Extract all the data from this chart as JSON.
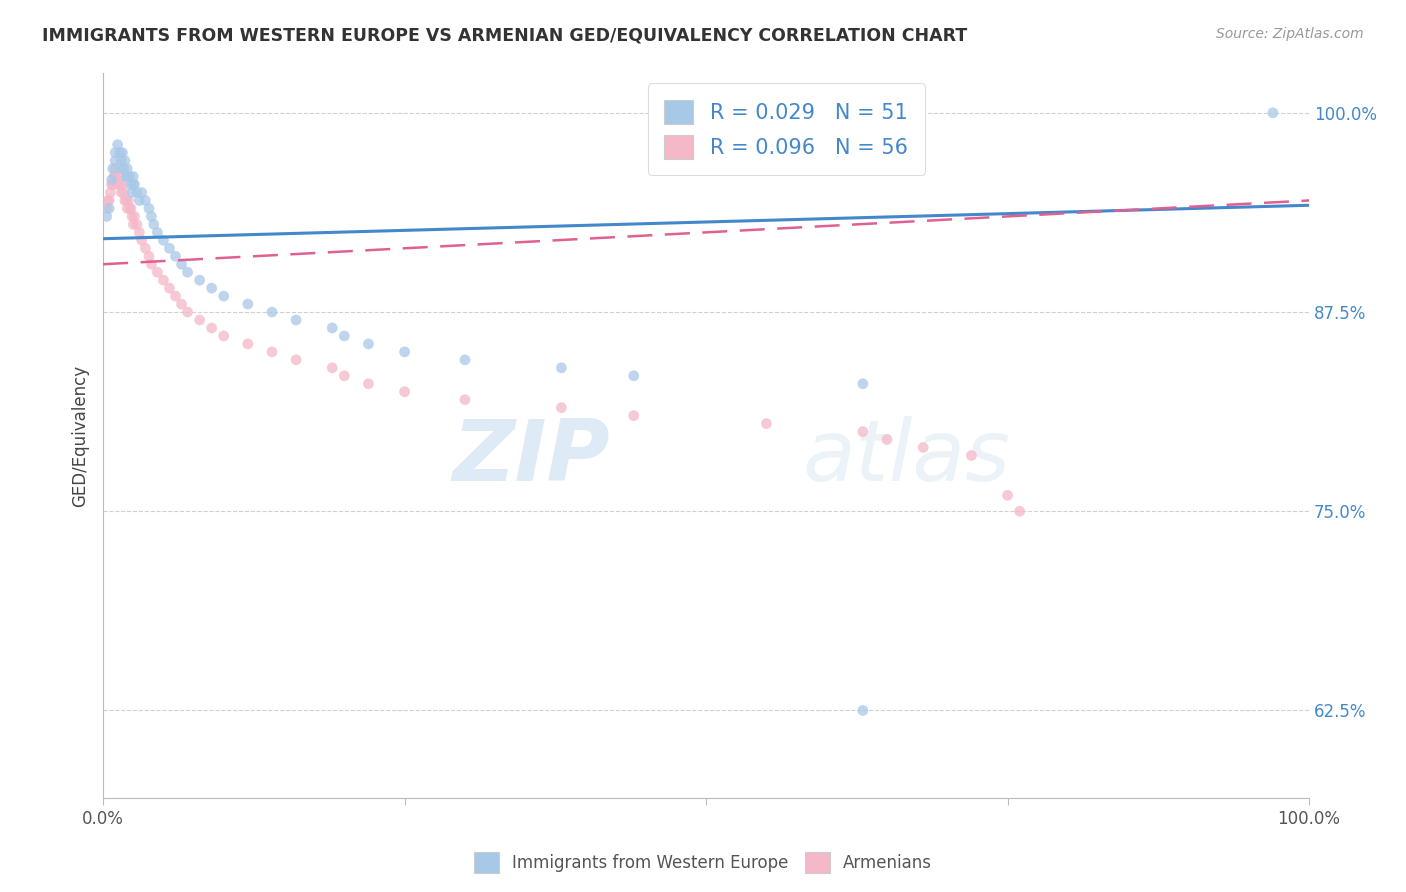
{
  "title": "IMMIGRANTS FROM WESTERN EUROPE VS ARMENIAN GED/EQUIVALENCY CORRELATION CHART",
  "source": "Source: ZipAtlas.com",
  "ylabel": "GED/Equivalency",
  "blue_color": "#a8c8e8",
  "pink_color": "#f4b8c8",
  "blue_line_color": "#4488cc",
  "pink_line_color": "#e06090",
  "background_color": "#ffffff",
  "grid_color": "#cccccc",
  "watermark_zip": "ZIP",
  "watermark_atlas": "atlas",
  "xlim": [
    0,
    1.0
  ],
  "ylim": [
    0.57,
    1.025
  ],
  "blue_line_x0": 0.0,
  "blue_line_x1": 1.0,
  "blue_line_y0": 0.921,
  "blue_line_y1": 0.942,
  "pink_line_x0": 0.0,
  "pink_line_x1": 1.0,
  "pink_line_y0": 0.905,
  "pink_line_y1": 0.945,
  "ytick_positions": [
    0.625,
    0.75,
    0.875,
    1.0
  ],
  "ytick_labels": [
    "62.5%",
    "75.0%",
    "87.5%",
    "100.0%"
  ],
  "blue_scatter_x": [
    0.003,
    0.005,
    0.007,
    0.008,
    0.01,
    0.01,
    0.012,
    0.014,
    0.015,
    0.015,
    0.016,
    0.017,
    0.018,
    0.019,
    0.02,
    0.02,
    0.022,
    0.023,
    0.024,
    0.025,
    0.025,
    0.026,
    0.028,
    0.03,
    0.032,
    0.035,
    0.038,
    0.04,
    0.042,
    0.045,
    0.05,
    0.055,
    0.06,
    0.065,
    0.07,
    0.08,
    0.09,
    0.1,
    0.12,
    0.14,
    0.16,
    0.19,
    0.2,
    0.22,
    0.25,
    0.3,
    0.38,
    0.44,
    0.63,
    0.63,
    0.97
  ],
  "blue_scatter_y": [
    0.935,
    0.94,
    0.958,
    0.965,
    0.97,
    0.975,
    0.98,
    0.975,
    0.97,
    0.965,
    0.975,
    0.965,
    0.97,
    0.96,
    0.96,
    0.965,
    0.96,
    0.955,
    0.95,
    0.955,
    0.96,
    0.955,
    0.95,
    0.945,
    0.95,
    0.945,
    0.94,
    0.935,
    0.93,
    0.925,
    0.92,
    0.915,
    0.91,
    0.905,
    0.9,
    0.895,
    0.89,
    0.885,
    0.88,
    0.875,
    0.87,
    0.865,
    0.86,
    0.855,
    0.85,
    0.845,
    0.84,
    0.835,
    0.83,
    0.625,
    1.0
  ],
  "blue_scatter_size": [
    60,
    60,
    60,
    60,
    60,
    60,
    60,
    60,
    60,
    60,
    60,
    60,
    60,
    60,
    60,
    60,
    60,
    60,
    60,
    60,
    60,
    60,
    60,
    60,
    60,
    60,
    60,
    60,
    60,
    60,
    60,
    60,
    60,
    60,
    60,
    60,
    60,
    60,
    60,
    60,
    60,
    60,
    60,
    60,
    60,
    60,
    60,
    60,
    60,
    60,
    60
  ],
  "pink_scatter_x": [
    0.003,
    0.004,
    0.005,
    0.006,
    0.007,
    0.008,
    0.009,
    0.01,
    0.01,
    0.012,
    0.013,
    0.014,
    0.015,
    0.016,
    0.017,
    0.018,
    0.019,
    0.02,
    0.021,
    0.022,
    0.023,
    0.024,
    0.025,
    0.026,
    0.028,
    0.03,
    0.032,
    0.035,
    0.038,
    0.04,
    0.045,
    0.05,
    0.055,
    0.06,
    0.065,
    0.07,
    0.08,
    0.09,
    0.1,
    0.12,
    0.14,
    0.16,
    0.19,
    0.2,
    0.22,
    0.25,
    0.3,
    0.38,
    0.44,
    0.55,
    0.63,
    0.65,
    0.68,
    0.72,
    0.75,
    0.76
  ],
  "pink_scatter_y": [
    0.94,
    0.945,
    0.945,
    0.95,
    0.955,
    0.955,
    0.96,
    0.96,
    0.965,
    0.955,
    0.96,
    0.955,
    0.95,
    0.955,
    0.95,
    0.945,
    0.945,
    0.94,
    0.945,
    0.94,
    0.94,
    0.935,
    0.93,
    0.935,
    0.93,
    0.925,
    0.92,
    0.915,
    0.91,
    0.905,
    0.9,
    0.895,
    0.89,
    0.885,
    0.88,
    0.875,
    0.87,
    0.865,
    0.86,
    0.855,
    0.85,
    0.845,
    0.84,
    0.835,
    0.83,
    0.825,
    0.82,
    0.815,
    0.81,
    0.805,
    0.8,
    0.795,
    0.79,
    0.785,
    0.76,
    0.75
  ],
  "pink_scatter_size": [
    60,
    60,
    60,
    60,
    60,
    60,
    60,
    60,
    60,
    60,
    60,
    60,
    60,
    60,
    60,
    60,
    60,
    60,
    60,
    60,
    60,
    60,
    60,
    60,
    60,
    60,
    60,
    60,
    60,
    60,
    60,
    60,
    60,
    60,
    60,
    60,
    60,
    60,
    60,
    60,
    60,
    60,
    60,
    60,
    60,
    60,
    60,
    60,
    60,
    60,
    60,
    60,
    60,
    60,
    60,
    60
  ]
}
